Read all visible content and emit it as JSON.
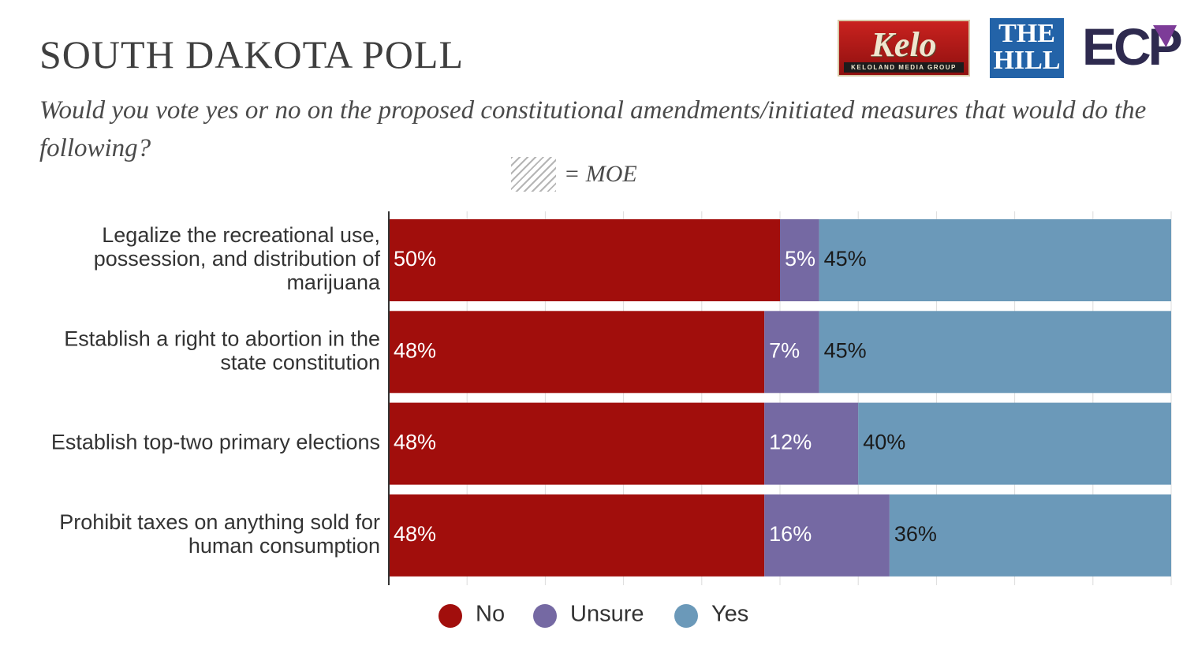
{
  "title": "SOUTH DAKOTA POLL",
  "subtitle": "Would you vote yes or no on the proposed constitutional amendments/initiated measures that would do the following?",
  "moe_label": "= MOE",
  "logos": {
    "kelo": {
      "word": "Kelo",
      "tagline": "KELOLAND MEDIA GROUP"
    },
    "hill": {
      "line1": "THE",
      "line2": "HILL"
    },
    "ecp": {
      "text": "ECP"
    }
  },
  "colors": {
    "No": "#a10e0c",
    "Unsure": "#7569a3",
    "Yes": "#6b99b9"
  },
  "chart_data": {
    "type": "bar",
    "orientation": "horizontal",
    "stacked": true,
    "categories": [
      [
        "Legalize the recreational use,",
        "possession, and distribution of",
        "marijuana"
      ],
      [
        "Establish a right to abortion in the",
        "state constitution"
      ],
      [
        "Establish top-two primary elections"
      ],
      [
        "Prohibit taxes on anything sold for",
        "human consumption"
      ]
    ],
    "series": [
      {
        "name": "No",
        "values": [
          50,
          48,
          48,
          48
        ],
        "labels": [
          "50%",
          "48%",
          "48%",
          "48%"
        ]
      },
      {
        "name": "Unsure",
        "values": [
          5,
          7,
          12,
          16
        ],
        "labels": [
          "5%",
          "7%",
          "12%",
          "16%"
        ]
      },
      {
        "name": "Yes",
        "values": [
          45,
          45,
          40,
          36
        ],
        "labels": [
          "45%",
          "45%",
          "40%",
          "36%"
        ]
      }
    ],
    "xlim": [
      0,
      100
    ],
    "grid": true,
    "legend_position": "bottom"
  }
}
